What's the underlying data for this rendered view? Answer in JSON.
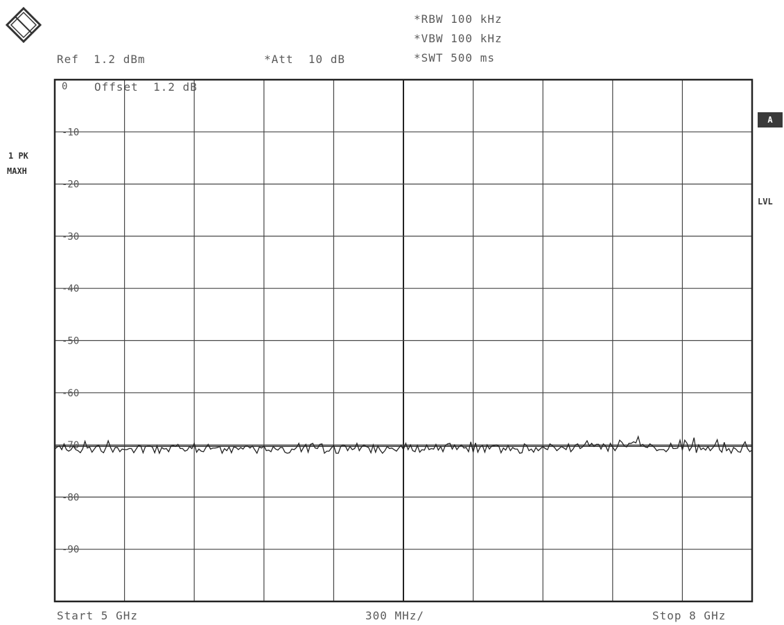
{
  "header": {
    "rbw": "*RBW 100 kHz",
    "vbw": "*VBW 100 kHz",
    "swt": "*SWT 500 ms",
    "ref": "Ref  1.2 dBm",
    "att": "*Att  10 dB",
    "offset": "Offset  1.2 dB"
  },
  "side": {
    "trace_line1": "1 PK",
    "trace_line2": "MAXH",
    "badge": "A",
    "lvl": "LVL"
  },
  "footer": {
    "start": "Start 5 GHz",
    "span_per_div": "300 MHz/",
    "stop": "Stop 8 GHz"
  },
  "chart_data": {
    "type": "line",
    "x_range_ghz": [
      5,
      8
    ],
    "x_divisions": 10,
    "y_range_db": [
      -100,
      0
    ],
    "y_ticks": [
      0,
      -10,
      -20,
      -30,
      -40,
      -50,
      -60,
      -70,
      -80,
      -90
    ],
    "y_tick_labels": [
      "0",
      "-10",
      "-20",
      "-30",
      "-40",
      "-50",
      "-60",
      "-70",
      "-80",
      "-90"
    ],
    "display_line_db": -70,
    "grid": true,
    "series": [
      {
        "trace": "max hold",
        "values_db": [
          -70.8,
          -70.4,
          -70.2,
          -70.9,
          -69.8,
          -70.9,
          -71.2,
          -70.9,
          -70.2,
          -70.9,
          -71.1,
          -71.5,
          -70.8,
          -69.3,
          -70.6,
          -70.4,
          -71.4,
          -70.8,
          -70.2,
          -70.1,
          -71.2,
          -71.5,
          -70.5,
          -69.2,
          -70.5,
          -71.4,
          -70.5,
          -70.5,
          -71.3,
          -70.8,
          -70.9,
          -70.9,
          -70.7,
          -70.7,
          -71.5,
          -70.8,
          -70.1,
          -70.2,
          -71.5,
          -70.3,
          -70.2,
          -70.2,
          -70.4,
          -71.5,
          -70.2,
          -71.6,
          -70.5,
          -70.8,
          -70.7,
          -71.3,
          -70.2,
          -70.1,
          -70.3,
          -69.9,
          -70.7,
          -70.7,
          -71.2,
          -71.0,
          -70.3,
          -70.7,
          -69.7,
          -71.4,
          -70.8,
          -71.2,
          -71.3,
          -70.5,
          -69.9,
          -70.8,
          -70.6,
          -70.6,
          -70.5,
          -70.3,
          -71.6,
          -70.7,
          -71.1,
          -70.4,
          -71.5,
          -70.4,
          -70.5,
          -70.9,
          -70.5,
          -70.8,
          -70.2,
          -70.2,
          -70.6,
          -70.2,
          -70.9,
          -71.6,
          -70.4,
          -70.6,
          -70.2,
          -71.1,
          -71.0,
          -71.3,
          -70.3,
          -70.8,
          -71.0,
          -70.5,
          -70.5,
          -71.4,
          -71.6,
          -71.5,
          -70.8,
          -70.9,
          -70.5,
          -69.7,
          -71.3,
          -70.5,
          -69.9,
          -71.4,
          -69.9,
          -69.7,
          -70.6,
          -70.7,
          -69.9,
          -69.8,
          -71.6,
          -71.2,
          -71.2,
          -70.6,
          -70.1,
          -71.6,
          -71.6,
          -70.3,
          -70.0,
          -70.2,
          -71.1,
          -70.3,
          -70.9,
          -70.7,
          -69.7,
          -71.1,
          -70.4,
          -70.0,
          -70.3,
          -70.5,
          -71.5,
          -70.0,
          -71.4,
          -70.2,
          -71.0,
          -71.6,
          -71.1,
          -70.3,
          -70.7,
          -70.6,
          -70.9,
          -71.2,
          -70.6,
          -70.1,
          -70.9,
          -69.7,
          -70.9,
          -70.0,
          -71.1,
          -71.3,
          -70.1,
          -71.4,
          -70.9,
          -71.0,
          -70.0,
          -70.9,
          -70.7,
          -70.8,
          -69.9,
          -71.0,
          -70.3,
          -71.3,
          -70.1,
          -69.8,
          -69.7,
          -70.8,
          -70.0,
          -70.9,
          -70.3,
          -70.0,
          -70.6,
          -70.5,
          -71.3,
          -69.4,
          -71.4,
          -69.6,
          -71.4,
          -70.4,
          -70.1,
          -71.4,
          -70.0,
          -70.8,
          -70.2,
          -70.1,
          -70.0,
          -70.2,
          -71.5,
          -70.6,
          -71.0,
          -70.1,
          -71.1,
          -70.5,
          -70.8,
          -70.8,
          -71.6,
          -71.5,
          -69.8,
          -70.1,
          -71.1,
          -70.8,
          -71.4,
          -70.5,
          -71.1,
          -70.7,
          -70.3,
          -70.7,
          -70.9,
          -69.8,
          -70.1,
          -70.5,
          -71.1,
          -70.7,
          -70.3,
          -70.6,
          -70.9,
          -69.8,
          -71.3,
          -70.8,
          -70.0,
          -69.8,
          -70.7,
          -70.4,
          -69.9,
          -69.2,
          -70.2,
          -69.7,
          -70.3,
          -69.9,
          -69.9,
          -70.8,
          -69.8,
          -70.2,
          -71.2,
          -69.7,
          -70.4,
          -71.1,
          -70.4,
          -69.1,
          -69.5,
          -70.2,
          -70.4,
          -69.7,
          -69.7,
          -69.4,
          -69.6,
          -68.4,
          -70.1,
          -69.9,
          -70.4,
          -70.5,
          -69.8,
          -70.1,
          -70.5,
          -71.1,
          -70.9,
          -70.9,
          -70.9,
          -71.3,
          -70.8,
          -69.7,
          -70.7,
          -70.7,
          -70.6,
          -69.1,
          -71.0,
          -69.1,
          -69.7,
          -71.1,
          -70.4,
          -68.6,
          -71.5,
          -70.0,
          -70.9,
          -70.6,
          -71.0,
          -70.3,
          -71.1,
          -70.6,
          -70.0,
          -69.0,
          -70.9,
          -71.4,
          -69.5,
          -71.1,
          -70.7,
          -71.6,
          -70.5,
          -70.8,
          -71.3,
          -71.4,
          -70.1,
          -69.4,
          -70.7,
          -71.3,
          -71.0
        ]
      }
    ]
  }
}
